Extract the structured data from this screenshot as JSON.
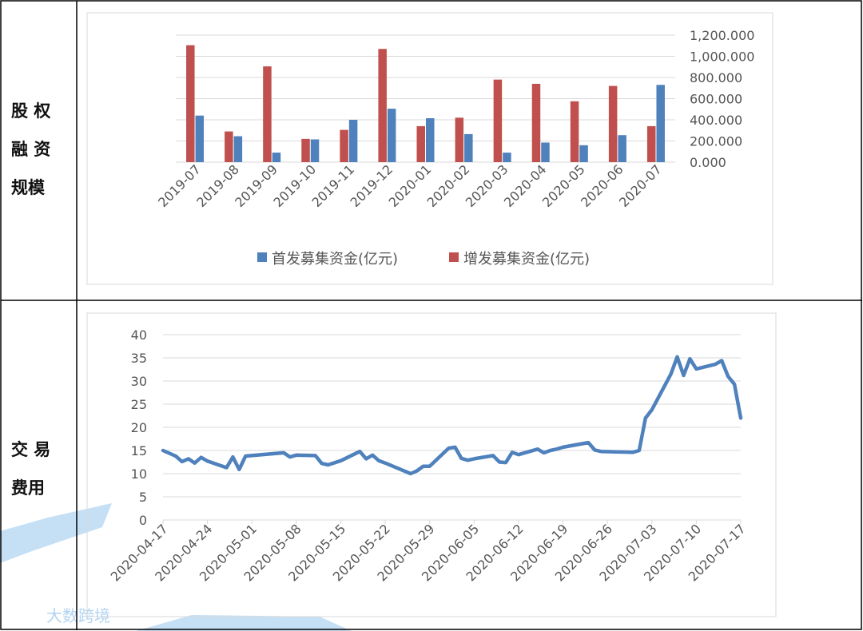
{
  "rows": [
    {
      "label_lines": [
        "股 权",
        "融 资",
        "规模"
      ]
    },
    {
      "label_lines": [
        "交 易",
        "费用"
      ]
    }
  ],
  "watermark": {
    "text": "大数跨境"
  },
  "colors": {
    "ipo": "#4f81bd",
    "additional": "#c0504d",
    "line": "#4f81bd",
    "grid": "#d9d9d9",
    "border": "#000000",
    "watermark": "#9ec9ee"
  },
  "chart_data": [
    {
      "type": "bar",
      "title": "",
      "categories": [
        "2019-07",
        "2019-08",
        "2019-09",
        "2019-10",
        "2019-11",
        "2019-12",
        "2020-01",
        "2020-02",
        "2020-03",
        "2020-04",
        "2020-05",
        "2020-06",
        "2020-07"
      ],
      "series": [
        {
          "name": "首发募集资金(亿元)",
          "values": [
            440,
            245,
            90,
            215,
            400,
            505,
            415,
            265,
            90,
            185,
            160,
            255,
            730
          ]
        },
        {
          "name": "增发募集资金(亿元)",
          "values": [
            1105,
            290,
            905,
            220,
            305,
            1070,
            340,
            420,
            780,
            740,
            575,
            720,
            340
          ]
        }
      ],
      "ylim": [
        0,
        1200
      ],
      "yticks": [
        "0.000",
        "200.000",
        "400.000",
        "600.000",
        "800.000",
        "1,000.000",
        "1,200.000"
      ],
      "y_axis_side": "right",
      "grid": true,
      "legend": "bottom"
    },
    {
      "type": "line",
      "title": "",
      "x_start": "2020-04-17",
      "x_end": "2020-07-17",
      "xticks": [
        "2020-04-17",
        "2020-04-24",
        "2020-05-01",
        "2020-05-08",
        "2020-05-15",
        "2020-05-22",
        "2020-05-29",
        "2020-06-05",
        "2020-06-12",
        "2020-06-19",
        "2020-06-26",
        "2020-07-03",
        "2020-07-10",
        "2020-07-17"
      ],
      "series": [
        {
          "points": [
            [
              "2020-04-17",
              15.0
            ],
            [
              "2020-04-19",
              13.8
            ],
            [
              "2020-04-20",
              12.6
            ],
            [
              "2020-04-21",
              13.2
            ],
            [
              "2020-04-22",
              12.3
            ],
            [
              "2020-04-23",
              13.5
            ],
            [
              "2020-04-24",
              12.7
            ],
            [
              "2020-04-27",
              11.3
            ],
            [
              "2020-04-28",
              13.6
            ],
            [
              "2020-04-29",
              10.9
            ],
            [
              "2020-04-30",
              13.8
            ],
            [
              "2020-05-06",
              14.5
            ],
            [
              "2020-05-07",
              13.6
            ],
            [
              "2020-05-08",
              14.0
            ],
            [
              "2020-05-11",
              13.9
            ],
            [
              "2020-05-12",
              12.2
            ],
            [
              "2020-05-13",
              11.9
            ],
            [
              "2020-05-15",
              12.8
            ],
            [
              "2020-05-18",
              14.8
            ],
            [
              "2020-05-19",
              13.2
            ],
            [
              "2020-05-20",
              14.0
            ],
            [
              "2020-05-21",
              12.8
            ],
            [
              "2020-05-22",
              12.3
            ],
            [
              "2020-05-26",
              10.0
            ],
            [
              "2020-05-27",
              10.6
            ],
            [
              "2020-05-28",
              11.6
            ],
            [
              "2020-05-29",
              11.6
            ],
            [
              "2020-06-01",
              15.5
            ],
            [
              "2020-06-02",
              15.7
            ],
            [
              "2020-06-03",
              13.3
            ],
            [
              "2020-06-04",
              12.9
            ],
            [
              "2020-06-05",
              13.2
            ],
            [
              "2020-06-08",
              13.9
            ],
            [
              "2020-06-09",
              12.5
            ],
            [
              "2020-06-10",
              12.4
            ],
            [
              "2020-06-11",
              14.6
            ],
            [
              "2020-06-12",
              14.1
            ],
            [
              "2020-06-15",
              15.3
            ],
            [
              "2020-06-16",
              14.5
            ],
            [
              "2020-06-17",
              15.0
            ],
            [
              "2020-06-18",
              15.3
            ],
            [
              "2020-06-19",
              15.7
            ],
            [
              "2020-06-23",
              16.7
            ],
            [
              "2020-06-24",
              15.1
            ],
            [
              "2020-06-25",
              14.8
            ],
            [
              "2020-06-30",
              14.6
            ],
            [
              "2020-07-01",
              15.0
            ],
            [
              "2020-07-02",
              22.0
            ],
            [
              "2020-07-03",
              23.8
            ],
            [
              "2020-07-06",
              31.5
            ],
            [
              "2020-07-07",
              35.2
            ],
            [
              "2020-07-08",
              31.2
            ],
            [
              "2020-07-09",
              34.8
            ],
            [
              "2020-07-10",
              32.6
            ],
            [
              "2020-07-13",
              33.6
            ],
            [
              "2020-07-14",
              34.4
            ],
            [
              "2020-07-15",
              31.0
            ],
            [
              "2020-07-16",
              29.3
            ],
            [
              "2020-07-17",
              22.0
            ]
          ]
        }
      ],
      "ylim": [
        0,
        40
      ],
      "yticks": [
        "0",
        "5",
        "10",
        "15",
        "20",
        "25",
        "30",
        "35",
        "40"
      ],
      "grid": true,
      "legend": "none"
    }
  ]
}
